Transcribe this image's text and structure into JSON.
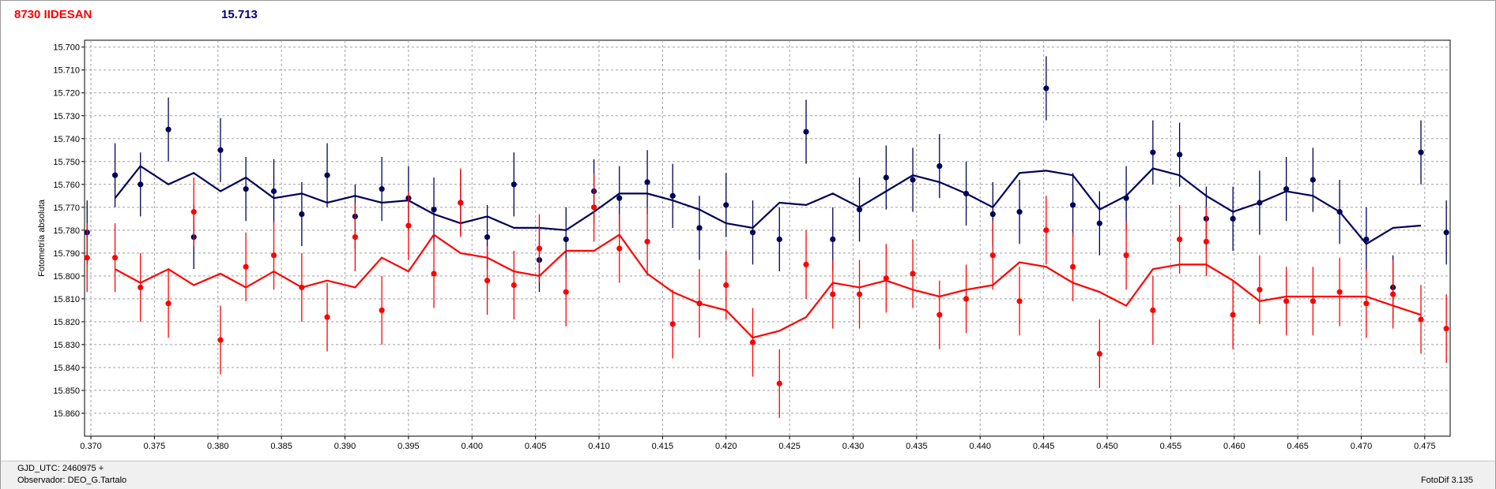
{
  "header": {
    "star_name": "8730 IIDESAN",
    "reference_mag": "15.713"
  },
  "footer": {
    "gjd_label": "GJD_UTC: 2460975 +",
    "observer_label": "Observador: DEO_G.Tartalo",
    "software": "FotoDif 3.135"
  },
  "colors": {
    "blue": "#00005a",
    "red": "#ff0000",
    "grid": "#a0a0a0"
  },
  "chart_data": {
    "type": "scatter",
    "ylabel": "Fotometría absoluta",
    "xlabel": "",
    "xlim": [
      0.3695,
      0.477
    ],
    "ylim": [
      15.697,
      15.87
    ],
    "y_inverted": true,
    "grid": true,
    "x_ticks": [
      "0.370",
      "0.375",
      "0.380",
      "0.385",
      "0.390",
      "0.395",
      "0.400",
      "0.405",
      "0.410",
      "0.415",
      "0.420",
      "0.425",
      "0.430",
      "0.435",
      "0.440",
      "0.445",
      "0.450",
      "0.455",
      "0.460",
      "0.465",
      "0.470",
      "0.475"
    ],
    "y_ticks": [
      "15.700",
      "15.710",
      "15.720",
      "15.730",
      "15.740",
      "15.750",
      "15.760",
      "15.770",
      "15.780",
      "15.790",
      "15.800",
      "15.810",
      "15.820",
      "15.830",
      "15.840",
      "15.850",
      "15.860"
    ],
    "series": [
      {
        "color": "#00005a",
        "points": [
          {
            "x": 0.3697,
            "y": 15.781,
            "err": 0.014
          },
          {
            "x": 0.3719,
            "y": 15.756,
            "err": 0.014
          },
          {
            "x": 0.3739,
            "y": 15.76,
            "err": 0.014
          },
          {
            "x": 0.3761,
            "y": 15.736,
            "err": 0.014
          },
          {
            "x": 0.3781,
            "y": 15.783,
            "err": 0.014
          },
          {
            "x": 0.3802,
            "y": 15.745,
            "err": 0.014
          },
          {
            "x": 0.3822,
            "y": 15.762,
            "err": 0.014
          },
          {
            "x": 0.3844,
            "y": 15.763,
            "err": 0.014
          },
          {
            "x": 0.3866,
            "y": 15.773,
            "err": 0.014
          },
          {
            "x": 0.3886,
            "y": 15.756,
            "err": 0.014
          },
          {
            "x": 0.3908,
            "y": 15.774,
            "err": 0.014
          },
          {
            "x": 0.3929,
            "y": 15.762,
            "err": 0.014
          },
          {
            "x": 0.395,
            "y": 15.766,
            "err": 0.014
          },
          {
            "x": 0.397,
            "y": 15.771,
            "err": 0.014
          },
          {
            "x": 0.3991,
            "y": 15.768,
            "err": 0.014
          },
          {
            "x": 0.4012,
            "y": 15.783,
            "err": 0.014
          },
          {
            "x": 0.4033,
            "y": 15.76,
            "err": 0.014
          },
          {
            "x": 0.4053,
            "y": 15.793,
            "err": 0.014
          },
          {
            "x": 0.4074,
            "y": 15.784,
            "err": 0.014
          },
          {
            "x": 0.4096,
            "y": 15.763,
            "err": 0.014
          },
          {
            "x": 0.4116,
            "y": 15.766,
            "err": 0.014
          },
          {
            "x": 0.4138,
            "y": 15.759,
            "err": 0.014
          },
          {
            "x": 0.4158,
            "y": 15.765,
            "err": 0.014
          },
          {
            "x": 0.4179,
            "y": 15.779,
            "err": 0.014
          },
          {
            "x": 0.42,
            "y": 15.769,
            "err": 0.014
          },
          {
            "x": 0.4221,
            "y": 15.781,
            "err": 0.014
          },
          {
            "x": 0.4242,
            "y": 15.784,
            "err": 0.014
          },
          {
            "x": 0.4263,
            "y": 15.737,
            "err": 0.014
          },
          {
            "x": 0.4284,
            "y": 15.784,
            "err": 0.014
          },
          {
            "x": 0.4305,
            "y": 15.771,
            "err": 0.014
          },
          {
            "x": 0.4326,
            "y": 15.757,
            "err": 0.014
          },
          {
            "x": 0.4347,
            "y": 15.758,
            "err": 0.014
          },
          {
            "x": 0.4368,
            "y": 15.752,
            "err": 0.014
          },
          {
            "x": 0.4389,
            "y": 15.764,
            "err": 0.014
          },
          {
            "x": 0.441,
            "y": 15.773,
            "err": 0.014
          },
          {
            "x": 0.4431,
            "y": 15.772,
            "err": 0.014
          },
          {
            "x": 0.4452,
            "y": 15.718,
            "err": 0.014
          },
          {
            "x": 0.4473,
            "y": 15.769,
            "err": 0.014
          },
          {
            "x": 0.4494,
            "y": 15.777,
            "err": 0.014
          },
          {
            "x": 0.4515,
            "y": 15.766,
            "err": 0.014
          },
          {
            "x": 0.4536,
            "y": 15.746,
            "err": 0.014
          },
          {
            "x": 0.4557,
            "y": 15.747,
            "err": 0.014
          },
          {
            "x": 0.4578,
            "y": 15.775,
            "err": 0.014
          },
          {
            "x": 0.4599,
            "y": 15.775,
            "err": 0.014
          },
          {
            "x": 0.462,
            "y": 15.768,
            "err": 0.014
          },
          {
            "x": 0.4641,
            "y": 15.762,
            "err": 0.014
          },
          {
            "x": 0.4662,
            "y": 15.758,
            "err": 0.014
          },
          {
            "x": 0.4683,
            "y": 15.772,
            "err": 0.014
          },
          {
            "x": 0.4704,
            "y": 15.784,
            "err": 0.014
          },
          {
            "x": 0.4725,
            "y": 15.805,
            "err": 0.014
          },
          {
            "x": 0.4747,
            "y": 15.746,
            "err": 0.014
          },
          {
            "x": 0.4767,
            "y": 15.781,
            "err": 0.014
          }
        ],
        "smooth_x": [
          0.3719,
          0.3739,
          0.3761,
          0.3781,
          0.3802,
          0.3822,
          0.3844,
          0.3866,
          0.3886,
          0.3908,
          0.3929,
          0.395,
          0.397,
          0.3991,
          0.4012,
          0.4033,
          0.4053,
          0.4074,
          0.4096,
          0.4116,
          0.4138,
          0.4158,
          0.4179,
          0.42,
          0.4221,
          0.4242,
          0.4263,
          0.4284,
          0.4305,
          0.4326,
          0.4347,
          0.4368,
          0.4389,
          0.441,
          0.4431,
          0.4452,
          0.4473,
          0.4494,
          0.4515,
          0.4536,
          0.4557,
          0.4578,
          0.4599,
          0.462,
          0.4641,
          0.4662,
          0.4683,
          0.4704,
          0.4725,
          0.4747
        ],
        "smooth_y": [
          15.766,
          15.752,
          15.76,
          15.755,
          15.763,
          15.757,
          15.766,
          15.764,
          15.768,
          15.765,
          15.768,
          15.767,
          15.773,
          15.777,
          15.774,
          15.779,
          15.779,
          15.78,
          15.772,
          15.764,
          15.764,
          15.767,
          15.771,
          15.777,
          15.779,
          15.768,
          15.769,
          15.764,
          15.77,
          15.763,
          15.756,
          15.759,
          15.764,
          15.77,
          15.755,
          15.754,
          15.756,
          15.771,
          15.765,
          15.753,
          15.756,
          15.765,
          15.772,
          15.768,
          15.763,
          15.765,
          15.772,
          15.786,
          15.779,
          15.778
        ]
      },
      {
        "color": "#ff0000",
        "points": [
          {
            "x": 0.3697,
            "y": 15.792,
            "err": 0.015
          },
          {
            "x": 0.3719,
            "y": 15.792,
            "err": 0.015
          },
          {
            "x": 0.3739,
            "y": 15.805,
            "err": 0.015
          },
          {
            "x": 0.3761,
            "y": 15.812,
            "err": 0.015
          },
          {
            "x": 0.3781,
            "y": 15.772,
            "err": 0.015
          },
          {
            "x": 0.3802,
            "y": 15.828,
            "err": 0.015
          },
          {
            "x": 0.3822,
            "y": 15.796,
            "err": 0.015
          },
          {
            "x": 0.3844,
            "y": 15.791,
            "err": 0.015
          },
          {
            "x": 0.3866,
            "y": 15.805,
            "err": 0.015
          },
          {
            "x": 0.3886,
            "y": 15.818,
            "err": 0.015
          },
          {
            "x": 0.3908,
            "y": 15.783,
            "err": 0.015
          },
          {
            "x": 0.3929,
            "y": 15.815,
            "err": 0.015
          },
          {
            "x": 0.395,
            "y": 15.778,
            "err": 0.015
          },
          {
            "x": 0.397,
            "y": 15.799,
            "err": 0.015
          },
          {
            "x": 0.3991,
            "y": 15.768,
            "err": 0.015
          },
          {
            "x": 0.4012,
            "y": 15.802,
            "err": 0.015
          },
          {
            "x": 0.4033,
            "y": 15.804,
            "err": 0.015
          },
          {
            "x": 0.4053,
            "y": 15.788,
            "err": 0.015
          },
          {
            "x": 0.4074,
            "y": 15.807,
            "err": 0.015
          },
          {
            "x": 0.4096,
            "y": 15.77,
            "err": 0.015
          },
          {
            "x": 0.4116,
            "y": 15.788,
            "err": 0.015
          },
          {
            "x": 0.4138,
            "y": 15.785,
            "err": 0.015
          },
          {
            "x": 0.4158,
            "y": 15.821,
            "err": 0.015
          },
          {
            "x": 0.4179,
            "y": 15.812,
            "err": 0.015
          },
          {
            "x": 0.42,
            "y": 15.804,
            "err": 0.015
          },
          {
            "x": 0.4221,
            "y": 15.829,
            "err": 0.015
          },
          {
            "x": 0.4242,
            "y": 15.847,
            "err": 0.015
          },
          {
            "x": 0.4263,
            "y": 15.795,
            "err": 0.015
          },
          {
            "x": 0.4284,
            "y": 15.808,
            "err": 0.015
          },
          {
            "x": 0.4305,
            "y": 15.808,
            "err": 0.015
          },
          {
            "x": 0.4326,
            "y": 15.801,
            "err": 0.015
          },
          {
            "x": 0.4347,
            "y": 15.799,
            "err": 0.015
          },
          {
            "x": 0.4368,
            "y": 15.817,
            "err": 0.015
          },
          {
            "x": 0.4389,
            "y": 15.81,
            "err": 0.015
          },
          {
            "x": 0.441,
            "y": 15.791,
            "err": 0.015
          },
          {
            "x": 0.4431,
            "y": 15.811,
            "err": 0.015
          },
          {
            "x": 0.4452,
            "y": 15.78,
            "err": 0.015
          },
          {
            "x": 0.4473,
            "y": 15.796,
            "err": 0.015
          },
          {
            "x": 0.4494,
            "y": 15.834,
            "err": 0.015
          },
          {
            "x": 0.4515,
            "y": 15.791,
            "err": 0.015
          },
          {
            "x": 0.4536,
            "y": 15.815,
            "err": 0.015
          },
          {
            "x": 0.4557,
            "y": 15.784,
            "err": 0.015
          },
          {
            "x": 0.4578,
            "y": 15.785,
            "err": 0.015
          },
          {
            "x": 0.4599,
            "y": 15.817,
            "err": 0.015
          },
          {
            "x": 0.462,
            "y": 15.806,
            "err": 0.015
          },
          {
            "x": 0.4641,
            "y": 15.811,
            "err": 0.015
          },
          {
            "x": 0.4662,
            "y": 15.811,
            "err": 0.015
          },
          {
            "x": 0.4683,
            "y": 15.807,
            "err": 0.015
          },
          {
            "x": 0.4704,
            "y": 15.812,
            "err": 0.015
          },
          {
            "x": 0.4725,
            "y": 15.808,
            "err": 0.015
          },
          {
            "x": 0.4747,
            "y": 15.819,
            "err": 0.015
          },
          {
            "x": 0.4767,
            "y": 15.823,
            "err": 0.015
          }
        ],
        "smooth_x": [
          0.3719,
          0.3739,
          0.3761,
          0.3781,
          0.3802,
          0.3822,
          0.3844,
          0.3866,
          0.3886,
          0.3908,
          0.3929,
          0.395,
          0.397,
          0.3991,
          0.4012,
          0.4033,
          0.4053,
          0.4074,
          0.4096,
          0.4116,
          0.4138,
          0.4158,
          0.4179,
          0.42,
          0.4221,
          0.4242,
          0.4263,
          0.4284,
          0.4305,
          0.4326,
          0.4347,
          0.4368,
          0.4389,
          0.441,
          0.4431,
          0.4452,
          0.4473,
          0.4494,
          0.4515,
          0.4536,
          0.4557,
          0.4578,
          0.4599,
          0.462,
          0.4641,
          0.4662,
          0.4683,
          0.4704,
          0.4725,
          0.4747
        ],
        "smooth_y": [
          15.797,
          15.803,
          15.797,
          15.804,
          15.799,
          15.805,
          15.798,
          15.805,
          15.802,
          15.805,
          15.792,
          15.798,
          15.782,
          15.79,
          15.792,
          15.798,
          15.8,
          15.789,
          15.789,
          15.782,
          15.799,
          15.807,
          15.812,
          15.815,
          15.827,
          15.824,
          15.818,
          15.803,
          15.805,
          15.802,
          15.806,
          15.809,
          15.806,
          15.804,
          15.794,
          15.796,
          15.803,
          15.807,
          15.813,
          15.797,
          15.795,
          15.795,
          15.802,
          15.811,
          15.809,
          15.809,
          15.809,
          15.809,
          15.813,
          15.817
        ]
      }
    ]
  }
}
